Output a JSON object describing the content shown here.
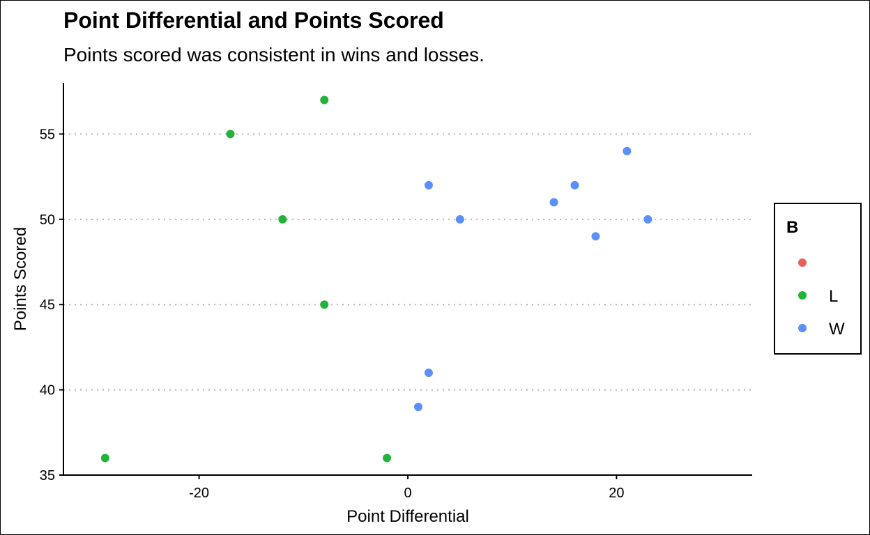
{
  "chart_data": {
    "type": "scatter",
    "title": "Point Differential and Points Scored",
    "subtitle": "Points scored was consistent in wins and losses.",
    "xlabel": "Point Differential",
    "ylabel": "Points Scored",
    "xlim": [
      -33,
      33
    ],
    "ylim": [
      35,
      58
    ],
    "xticks": [
      -20,
      0,
      20
    ],
    "xtick_labels": [
      "-20",
      "0",
      "20"
    ],
    "yticks": [
      35,
      40,
      45,
      50,
      55
    ],
    "ytick_labels": [
      "35",
      "40",
      "45",
      "50",
      "55"
    ],
    "grid": "horizontal dotted",
    "legend": {
      "title": "B",
      "placement": "right",
      "entries": [
        {
          "label": "",
          "color": "#e8605a"
        },
        {
          "label": "L",
          "color": "#22b33a"
        },
        {
          "label": "W",
          "color": "#5b8ff9"
        }
      ]
    },
    "series": [
      {
        "name": "L",
        "color": "#22b33a",
        "points": [
          {
            "x": -29,
            "y": 36
          },
          {
            "x": -17,
            "y": 55
          },
          {
            "x": -12,
            "y": 50
          },
          {
            "x": -8,
            "y": 57
          },
          {
            "x": -8,
            "y": 45
          },
          {
            "x": -2,
            "y": 36
          }
        ]
      },
      {
        "name": "W",
        "color": "#5b8ff9",
        "points": [
          {
            "x": 1,
            "y": 39
          },
          {
            "x": 2,
            "y": 41
          },
          {
            "x": 2,
            "y": 52
          },
          {
            "x": 5,
            "y": 50
          },
          {
            "x": 14,
            "y": 51
          },
          {
            "x": 16,
            "y": 52
          },
          {
            "x": 18,
            "y": 49
          },
          {
            "x": 21,
            "y": 54
          },
          {
            "x": 23,
            "y": 50
          }
        ]
      }
    ]
  }
}
